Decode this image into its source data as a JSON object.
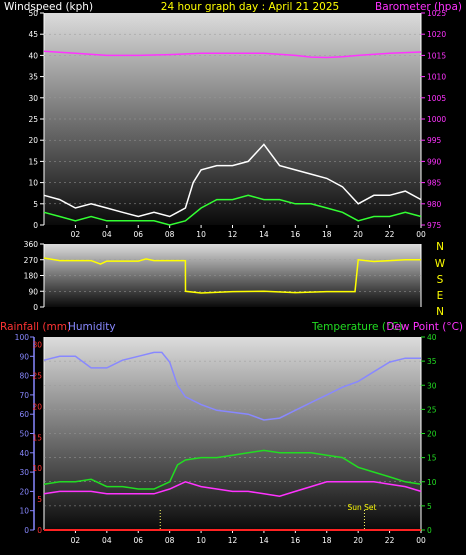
{
  "header": {
    "left_title": "Windspeed (kph)",
    "center_title": "24 hour graph day : April 21 2025",
    "right_title": "Barometer (hpa)"
  },
  "bottom_header": {
    "rainfall": "Rainfall (mm)",
    "humidity": "Humidity",
    "temperature": "Temperature (°C)",
    "dewpoint": "Dew Point (°C)",
    "sunset": "Sun Set"
  },
  "compass": [
    "N",
    "W",
    "S",
    "E",
    "N"
  ],
  "colors": {
    "wind_gust": "#ffffff",
    "wind_avg": "#33ff33",
    "barometer": "#ff33ff",
    "wind_dir": "#ffff00",
    "temperature": "#22dd22",
    "dewpoint": "#ff33ff",
    "humidity": "#8888ff",
    "rainfall": "#ff2222",
    "title": "#ffff00"
  },
  "chart_data": [
    {
      "type": "line",
      "x_ticks": [
        "02",
        "04",
        "06",
        "08",
        "10",
        "12",
        "14",
        "16",
        "18",
        "20",
        "22",
        "00"
      ],
      "left_ticks": [
        "0",
        "5",
        "10",
        "15",
        "20",
        "25",
        "30",
        "35",
        "40",
        "45",
        "50"
      ],
      "right_ticks": [
        "975",
        "980",
        "985",
        "990",
        "995",
        "1000",
        "1005",
        "1010",
        "1015",
        "1020",
        "1025"
      ],
      "ylim_left": [
        0,
        50
      ],
      "ylim_right": [
        975,
        1025
      ],
      "series": [
        {
          "axis": "left",
          "x": [
            0,
            1,
            2,
            3,
            4,
            5,
            6,
            7,
            8,
            8.5,
            9,
            9.5,
            10,
            11,
            12,
            13,
            14,
            15,
            16,
            17,
            18,
            19,
            20,
            21,
            22,
            23,
            24
          ],
          "values": [
            7,
            6,
            4,
            5,
            4,
            3,
            2,
            3,
            2,
            3,
            4,
            10,
            13,
            14,
            14,
            15,
            19,
            14,
            13,
            12,
            11,
            9,
            5,
            7,
            7,
            8,
            6
          ]
        },
        {
          "axis": "left",
          "x": [
            0,
            1,
            2,
            3,
            4,
            5,
            6,
            7,
            8,
            9,
            10,
            11,
            12,
            13,
            14,
            15,
            16,
            17,
            18,
            19,
            20,
            21,
            22,
            23,
            24
          ],
          "values": [
            3,
            2,
            1,
            2,
            1,
            1,
            1,
            1,
            0,
            1,
            4,
            6,
            6,
            7,
            6,
            6,
            5,
            5,
            4,
            3,
            1,
            2,
            2,
            3,
            2
          ]
        },
        {
          "axis": "right",
          "x": [
            0,
            2,
            4,
            6,
            8,
            10,
            12,
            14,
            16,
            17,
            18,
            19,
            20,
            22,
            24
          ],
          "values": [
            1016,
            1015.5,
            1015,
            1015,
            1015.2,
            1015.5,
            1015.5,
            1015.5,
            1015,
            1014.6,
            1014.5,
            1014.7,
            1015,
            1015.5,
            1015.8
          ]
        }
      ]
    },
    {
      "type": "line",
      "left_ticks": [
        "0",
        "90",
        "180",
        "270",
        "360"
      ],
      "ylim": [
        0,
        360
      ],
      "series": [
        {
          "x": [
            0,
            1,
            2,
            3,
            3.6,
            4,
            5,
            6,
            6.5,
            7,
            8,
            9,
            9.01,
            10,
            12,
            14,
            16,
            18,
            19.8,
            20,
            21,
            22,
            23,
            24
          ],
          "values": [
            280,
            265,
            265,
            265,
            245,
            262,
            262,
            262,
            275,
            265,
            265,
            265,
            90,
            80,
            88,
            90,
            82,
            88,
            88,
            270,
            260,
            265,
            270,
            270
          ]
        }
      ]
    },
    {
      "type": "line",
      "x_ticks": [
        "02",
        "04",
        "06",
        "08",
        "10",
        "12",
        "14",
        "16",
        "18",
        "20",
        "22",
        "00"
      ],
      "left_ticks_rain": [
        "0",
        "5",
        "10",
        "15",
        "20",
        "25",
        "30"
      ],
      "left_ticks_humidity": [
        "0",
        "10",
        "20",
        "30",
        "40",
        "50",
        "60",
        "70",
        "80",
        "90",
        "100"
      ],
      "right_ticks": [
        "0",
        "5",
        "10",
        "15",
        "20",
        "25",
        "30",
        "35",
        "40"
      ],
      "ylim_rain": [
        0,
        30
      ],
      "ylim_humidity": [
        0,
        100
      ],
      "ylim_right": [
        0,
        40
      ],
      "series": [
        {
          "axis": "right",
          "x": [
            0,
            1,
            2,
            3,
            4,
            5,
            6,
            7,
            8,
            8.5,
            9,
            10,
            11,
            12,
            13,
            14,
            15,
            16,
            17,
            18,
            19,
            20,
            21,
            22,
            23,
            24
          ],
          "values": [
            9.5,
            10,
            10,
            10.5,
            9,
            9,
            8.5,
            8.5,
            10,
            13.5,
            14.5,
            15,
            15,
            15.5,
            16,
            16.5,
            16,
            16,
            16,
            15.5,
            15,
            13,
            12,
            11,
            10,
            9.5
          ]
        },
        {
          "axis": "right",
          "x": [
            0,
            1,
            2,
            3,
            4,
            5,
            6,
            7,
            8,
            9,
            10,
            11,
            12,
            13,
            14,
            15,
            16,
            17,
            18,
            19,
            20,
            21,
            22,
            23,
            24
          ],
          "values": [
            7.5,
            8,
            8,
            8,
            7.5,
            7.5,
            7.5,
            7.5,
            8.5,
            10,
            9,
            8.5,
            8,
            8,
            7.5,
            7,
            8,
            9,
            10,
            10,
            10,
            10,
            9.5,
            9,
            8
          ]
        },
        {
          "axis": "humidity",
          "x": [
            0,
            1,
            2,
            3,
            4,
            5,
            6,
            7,
            7.5,
            8,
            8.5,
            9,
            10,
            11,
            12,
            13,
            14,
            15,
            16,
            17,
            18,
            19,
            20,
            21,
            22,
            23,
            24
          ],
          "values": [
            88,
            90,
            90,
            84,
            84,
            88,
            90,
            92,
            92,
            87,
            75,
            69,
            65,
            62,
            61,
            60,
            57,
            58,
            62,
            66,
            70,
            74,
            77,
            82,
            87,
            89,
            89
          ]
        },
        {
          "axis": "rain",
          "x": [
            0,
            24
          ],
          "values": [
            0,
            0
          ]
        }
      ],
      "markers": [
        {
          "x": 7.4
        },
        {
          "x": 20.4
        }
      ]
    }
  ]
}
